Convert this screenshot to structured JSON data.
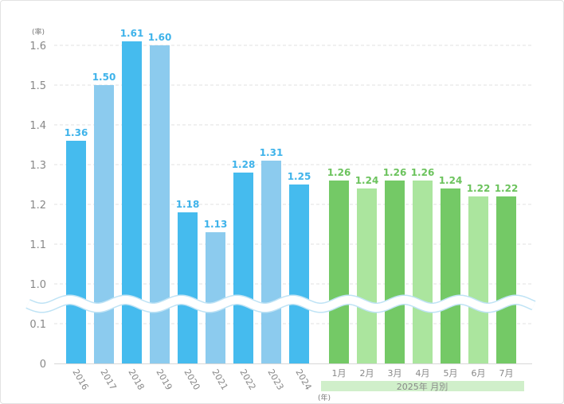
{
  "chart_data": {
    "type": "bar",
    "y_unit_label": "(率)",
    "x_unit_label": "(年)",
    "yticks": [
      "0",
      "0.1",
      "1.0",
      "1.1",
      "1.2",
      "1.3",
      "1.4",
      "1.5",
      "1.6"
    ],
    "axis_break": "between 0.1 and 1.0",
    "groups": [
      {
        "name": "annual",
        "categories": [
          "2016",
          "2017",
          "2018",
          "2019",
          "2020",
          "2021",
          "2022",
          "2023",
          "2024"
        ],
        "values": [
          1.36,
          1.5,
          1.61,
          1.6,
          1.18,
          1.13,
          1.28,
          1.31,
          1.25
        ],
        "colors": [
          "#45bbee",
          "#8ccbee"
        ],
        "label_color": "#3fb3ea"
      },
      {
        "name": "monthly",
        "group_label": "2025年 月別",
        "categories": [
          "1月",
          "2月",
          "3月",
          "4月",
          "5月",
          "6月",
          "7月"
        ],
        "values": [
          1.26,
          1.24,
          1.26,
          1.26,
          1.24,
          1.22,
          1.22
        ],
        "colors": [
          "#74c966",
          "#abe59e"
        ],
        "label_color": "#6cc35d"
      }
    ],
    "grid": true
  }
}
